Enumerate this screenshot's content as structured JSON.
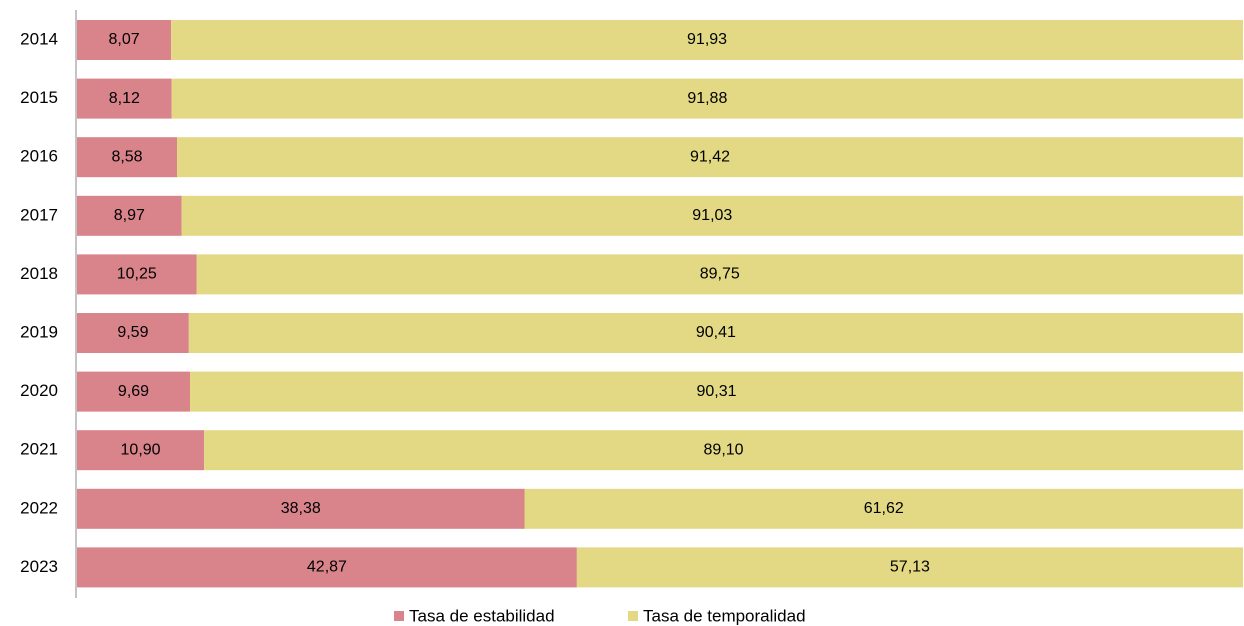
{
  "chart_data": {
    "type": "stacked-barh",
    "categories": [
      "2014",
      "2015",
      "2016",
      "2017",
      "2018",
      "2019",
      "2020",
      "2021",
      "2022",
      "2023"
    ],
    "series": [
      {
        "name": "Tasa de estabilidad",
        "color": "#d9838b",
        "values": [
          8.07,
          8.12,
          8.58,
          8.97,
          10.25,
          9.59,
          9.69,
          10.9,
          38.38,
          42.87
        ],
        "value_labels": [
          "8,07",
          "8,12",
          "8,58",
          "8,97",
          "10,25",
          "9,59",
          "9,69",
          "10,90",
          "38,38",
          "42,87"
        ]
      },
      {
        "name": "Tasa de temporalidad",
        "color": "#e3d985",
        "values": [
          91.93,
          91.88,
          91.42,
          91.03,
          89.75,
          90.41,
          90.31,
          89.1,
          61.62,
          57.13
        ],
        "value_labels": [
          "91,93",
          "91,88",
          "91,42",
          "91,03",
          "89,75",
          "90,41",
          "90,31",
          "89,10",
          "61,62",
          "57,13"
        ]
      }
    ],
    "xlim": [
      0,
      100
    ],
    "legend": "bottom"
  }
}
